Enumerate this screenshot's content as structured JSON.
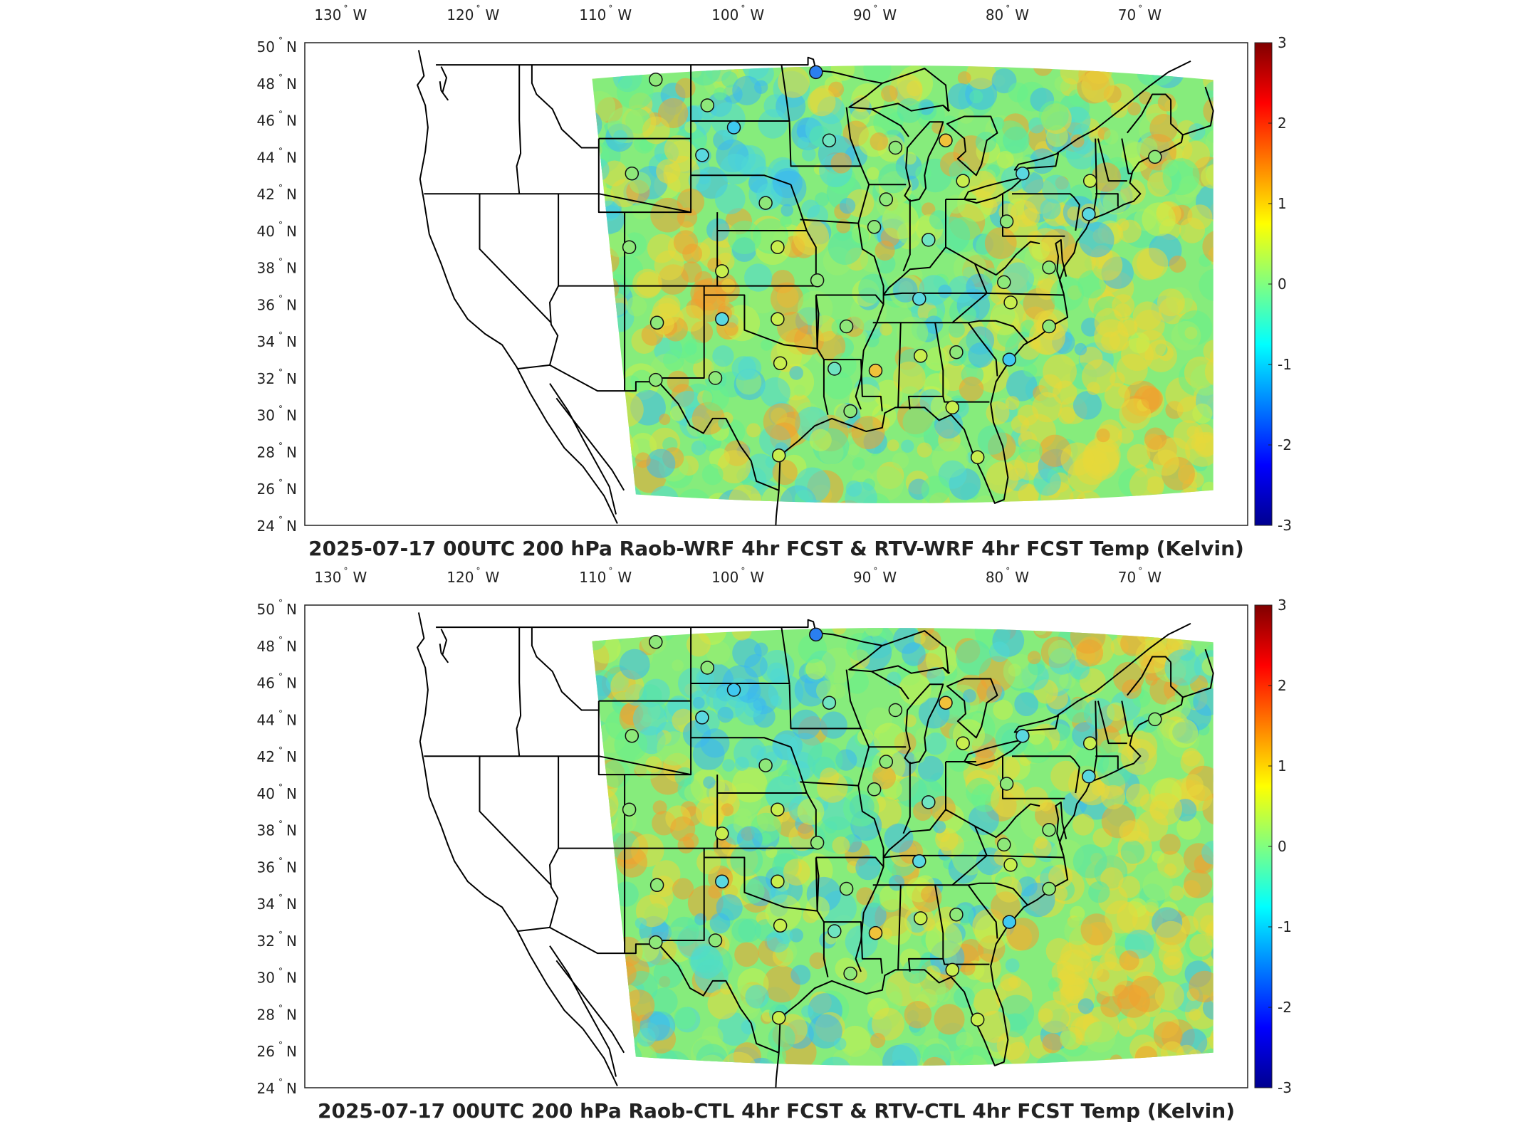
{
  "panels": [
    {
      "title": "2025-07-17 00UTC 200 hPa Raob-WRF 4hr FCST & RTV-WRF 4hr FCST Temp (Kelvin)",
      "variant": "wrf"
    },
    {
      "title": "2025-07-17 00UTC 200 hPa Raob-CTL 4hr FCST & RTV-CTL 4hr FCST Temp (Kelvin)",
      "variant": "ctl"
    }
  ],
  "lon_ticks": [
    {
      "deg": "130",
      "dir": "W"
    },
    {
      "deg": "120",
      "dir": "W"
    },
    {
      "deg": "110",
      "dir": "W"
    },
    {
      "deg": "100",
      "dir": "W"
    },
    {
      "deg": "90",
      "dir": "W"
    },
    {
      "deg": "80",
      "dir": "W"
    },
    {
      "deg": "70",
      "dir": "W"
    }
  ],
  "lat_ticks": [
    {
      "deg": "50",
      "dir": "N"
    },
    {
      "deg": "48",
      "dir": "N"
    },
    {
      "deg": "46",
      "dir": "N"
    },
    {
      "deg": "44",
      "dir": "N"
    },
    {
      "deg": "42",
      "dir": "N"
    },
    {
      "deg": "40",
      "dir": "N"
    },
    {
      "deg": "38",
      "dir": "N"
    },
    {
      "deg": "36",
      "dir": "N"
    },
    {
      "deg": "34",
      "dir": "N"
    },
    {
      "deg": "32",
      "dir": "N"
    },
    {
      "deg": "30",
      "dir": "N"
    },
    {
      "deg": "28",
      "dir": "N"
    },
    {
      "deg": "26",
      "dir": "N"
    },
    {
      "deg": "24",
      "dir": "N"
    }
  ],
  "colorbar": {
    "ticks": [
      "3",
      "2",
      "1",
      "0",
      "-1",
      "-2",
      "-3"
    ],
    "min": -3,
    "max": 3,
    "colors": [
      "#00008f",
      "#0000ff",
      "#0080ff",
      "#00ffff",
      "#80ff80",
      "#ffff00",
      "#ff8000",
      "#ff0000",
      "#800000"
    ]
  },
  "field_colors": {
    "wrf": [
      "#56e6a8",
      "#66f08c",
      "#9aef6e",
      "#4fd8d6",
      "#c8f04a",
      "#e8d83a",
      "#3ab8f0",
      "#f0a030"
    ],
    "ctl": [
      "#66f08c",
      "#9aef6e",
      "#c8f04a",
      "#56e6a8",
      "#e8d83a",
      "#4fd8d6",
      "#3ab8f0",
      "#f0a030"
    ]
  },
  "stations": [
    {
      "lon": -106.7,
      "lat": 48.2,
      "c": "#8ee87a"
    },
    {
      "lon": -102.8,
      "lat": 46.8,
      "c": "#8ee87a"
    },
    {
      "lon": -100.8,
      "lat": 45.6,
      "c": "#3fc9f0"
    },
    {
      "lon": -94.6,
      "lat": 48.6,
      "c": "#2a7ff0"
    },
    {
      "lon": -93.6,
      "lat": 44.9,
      "c": "#6fe4c0"
    },
    {
      "lon": -108.5,
      "lat": 43.1,
      "c": "#8ee87a"
    },
    {
      "lon": -103.2,
      "lat": 44.1,
      "c": "#5ad8e0"
    },
    {
      "lon": -98.4,
      "lat": 41.5,
      "c": "#8ee87a"
    },
    {
      "lon": -89.3,
      "lat": 41.7,
      "c": "#8ee87a"
    },
    {
      "lon": -88.6,
      "lat": 44.5,
      "c": "#8ee87a"
    },
    {
      "lon": -84.8,
      "lat": 44.9,
      "c": "#f0c23a"
    },
    {
      "lon": -83.5,
      "lat": 42.7,
      "c": "#c8ee4e"
    },
    {
      "lon": -79.0,
      "lat": 43.1,
      "c": "#5ad8e0"
    },
    {
      "lon": -73.9,
      "lat": 42.7,
      "c": "#c8ee4e"
    },
    {
      "lon": -69.0,
      "lat": 44.0,
      "c": "#8ee87a"
    },
    {
      "lon": -108.7,
      "lat": 39.1,
      "c": "#8ee87a"
    },
    {
      "lon": -101.7,
      "lat": 37.8,
      "c": "#c8ee4e"
    },
    {
      "lon": -97.5,
      "lat": 39.1,
      "c": "#c8ee4e"
    },
    {
      "lon": -90.2,
      "lat": 40.2,
      "c": "#8ee87a"
    },
    {
      "lon": -86.1,
      "lat": 39.5,
      "c": "#6fe4c0"
    },
    {
      "lon": -80.2,
      "lat": 40.5,
      "c": "#8ee87a"
    },
    {
      "lon": -74.0,
      "lat": 40.9,
      "c": "#5ad8e0"
    },
    {
      "lon": -77.0,
      "lat": 38.0,
      "c": "#8ee87a"
    },
    {
      "lon": -80.4,
      "lat": 37.2,
      "c": "#8ee87a"
    },
    {
      "lon": -79.9,
      "lat": 36.1,
      "c": "#c8ee4e"
    },
    {
      "lon": -77.0,
      "lat": 34.8,
      "c": "#8ee87a"
    },
    {
      "lon": -80.0,
      "lat": 33.0,
      "c": "#3fc9f0"
    },
    {
      "lon": -84.0,
      "lat": 33.4,
      "c": "#8ee87a"
    },
    {
      "lon": -86.7,
      "lat": 33.2,
      "c": "#c8ee4e"
    },
    {
      "lon": -90.1,
      "lat": 32.4,
      "c": "#f0c23a"
    },
    {
      "lon": -93.2,
      "lat": 32.5,
      "c": "#6fe4c0"
    },
    {
      "lon": -92.3,
      "lat": 34.8,
      "c": "#8ee87a"
    },
    {
      "lon": -94.5,
      "lat": 37.3,
      "c": "#8ee87a"
    },
    {
      "lon": -86.8,
      "lat": 36.3,
      "c": "#5ad8e0"
    },
    {
      "lon": -97.5,
      "lat": 35.2,
      "c": "#c8ee4e"
    },
    {
      "lon": -101.7,
      "lat": 35.2,
      "c": "#5ad8e0"
    },
    {
      "lon": -106.6,
      "lat": 35.0,
      "c": "#8ee87a"
    },
    {
      "lon": -102.2,
      "lat": 32.0,
      "c": "#8ee87a"
    },
    {
      "lon": -106.7,
      "lat": 31.9,
      "c": "#8ee87a"
    },
    {
      "lon": -97.3,
      "lat": 32.8,
      "c": "#c8ee4e"
    },
    {
      "lon": -92.0,
      "lat": 30.2,
      "c": "#8ee87a"
    },
    {
      "lon": -97.4,
      "lat": 27.8,
      "c": "#c8ee4e"
    },
    {
      "lon": -84.3,
      "lat": 30.4,
      "c": "#c8ee4e"
    },
    {
      "lon": -82.4,
      "lat": 27.7,
      "c": "#c8ee4e"
    }
  ]
}
